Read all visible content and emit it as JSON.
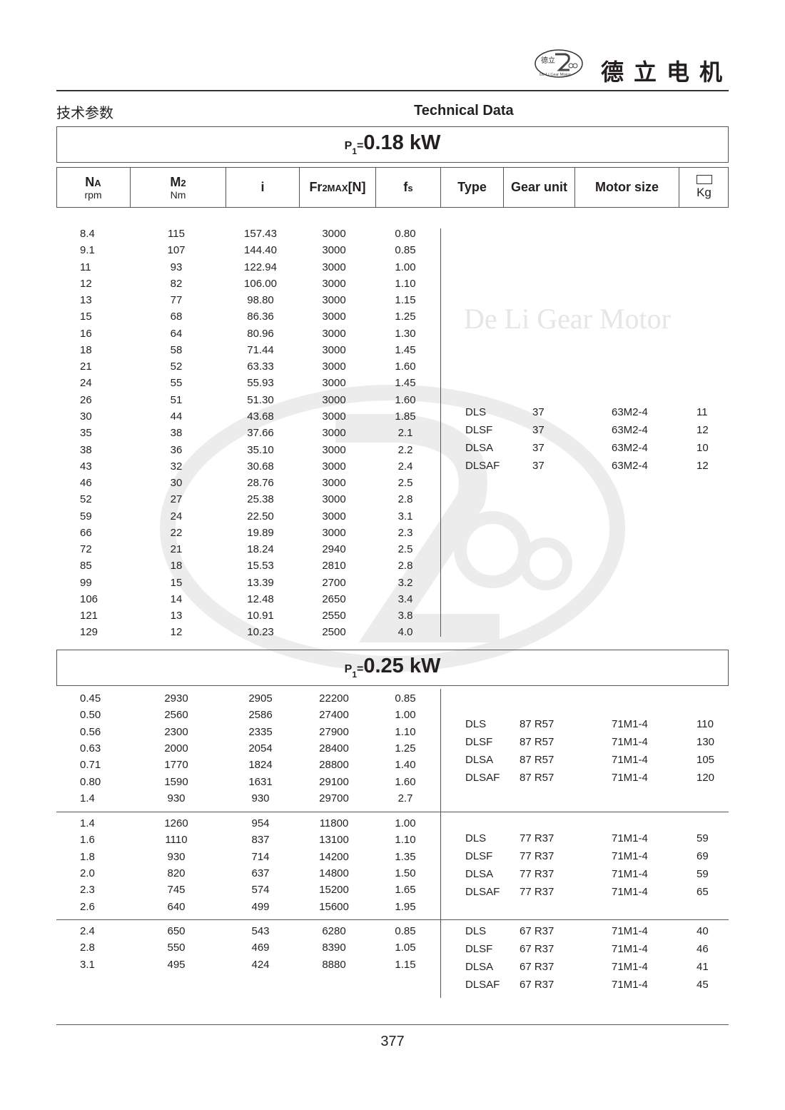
{
  "brand": {
    "logo_text": "德立",
    "logo_caption": "De Li Gear Motor",
    "name_cn": "德立电机"
  },
  "page_heading": {
    "cn": "技术参数",
    "en": "Technical Data"
  },
  "watermark": "De Li Gear Motor",
  "columns": {
    "na": {
      "label": "N",
      "sub": "A",
      "unit": "rpm"
    },
    "m2": {
      "label": "M",
      "sub": "2",
      "unit": "Nm"
    },
    "i": {
      "label": "i"
    },
    "fr": {
      "label": "Fr",
      "sub": "2MAX",
      "suffix": "[N]"
    },
    "fs": {
      "label": "f",
      "sub": "s"
    },
    "type": {
      "label": "Type"
    },
    "gear": {
      "label": "Gear unit"
    },
    "motor": {
      "label": "Motor size"
    },
    "kg": {
      "label": "Kg",
      "icon": "weight-icon"
    }
  },
  "sections": [
    {
      "power_prefix": "P",
      "power_sub": "1",
      "power_eq": "=",
      "power": "0.18 kW",
      "groups": [
        {
          "rows": [
            [
              "8.4",
              "115",
              "157.43",
              "3000",
              "0.80"
            ],
            [
              "9.1",
              "107",
              "144.40",
              "3000",
              "0.85"
            ],
            [
              "11",
              "93",
              "122.94",
              "3000",
              "1.00"
            ],
            [
              "12",
              "82",
              "106.00",
              "3000",
              "1.10"
            ],
            [
              "13",
              "77",
              "98.80",
              "3000",
              "1.15"
            ],
            [
              "15",
              "68",
              "86.36",
              "3000",
              "1.25"
            ],
            [
              "16",
              "64",
              "80.96",
              "3000",
              "1.30"
            ],
            [
              "18",
              "58",
              "71.44",
              "3000",
              "1.45"
            ],
            [
              "21",
              "52",
              "63.33",
              "3000",
              "1.60"
            ],
            [
              "24",
              "55",
              "55.93",
              "3000",
              "1.45"
            ],
            [
              "26",
              "51",
              "51.30",
              "3000",
              "1.60"
            ],
            [
              "30",
              "44",
              "43.68",
              "3000",
              "1.85"
            ],
            [
              "35",
              "38",
              "37.66",
              "3000",
              "2.1"
            ],
            [
              "38",
              "36",
              "35.10",
              "3000",
              "2.2"
            ],
            [
              "43",
              "32",
              "30.68",
              "3000",
              "2.4"
            ],
            [
              "46",
              "30",
              "28.76",
              "3000",
              "2.5"
            ],
            [
              "52",
              "27",
              "25.38",
              "3000",
              "2.8"
            ],
            [
              "59",
              "24",
              "22.50",
              "3000",
              "3.1"
            ],
            [
              "66",
              "22",
              "19.89",
              "3000",
              "2.3"
            ],
            [
              "72",
              "21",
              "18.24",
              "2940",
              "2.5"
            ],
            [
              "85",
              "18",
              "15.53",
              "2810",
              "2.8"
            ],
            [
              "99",
              "15",
              "13.39",
              "2700",
              "3.2"
            ],
            [
              "106",
              "14",
              "12.48",
              "2650",
              "3.4"
            ],
            [
              "121",
              "13",
              "10.91",
              "2550",
              "3.8"
            ],
            [
              "129",
              "12",
              "10.23",
              "2500",
              "4.0"
            ]
          ],
          "units": [
            [
              "DLS",
              "37",
              "63M2-4",
              "11"
            ],
            [
              "DLSF",
              "37",
              "63M2-4",
              "12"
            ],
            [
              "DLSA",
              "37",
              "63M2-4",
              "10"
            ],
            [
              "DLSAF",
              "37",
              "63M2-4",
              "12"
            ]
          ]
        }
      ]
    },
    {
      "power_prefix": "P",
      "power_sub": "1",
      "power_eq": "=",
      "power": "0.25 kW",
      "groups": [
        {
          "rows": [
            [
              "0.45",
              "2930",
              "2905",
              "22200",
              "0.85"
            ],
            [
              "0.50",
              "2560",
              "2586",
              "27400",
              "1.00"
            ],
            [
              "0.56",
              "2300",
              "2335",
              "27900",
              "1.10"
            ],
            [
              "0.63",
              "2000",
              "2054",
              "28400",
              "1.25"
            ],
            [
              "0.71",
              "1770",
              "1824",
              "28800",
              "1.40"
            ],
            [
              "0.80",
              "1590",
              "1631",
              "29100",
              "1.60"
            ],
            [
              "1.4",
              "930",
              "930",
              "29700",
              "2.7"
            ]
          ],
          "units": [
            [
              "DLS",
              "87 R57",
              "71M1-4",
              "110"
            ],
            [
              "DLSF",
              "87 R57",
              "71M1-4",
              "130"
            ],
            [
              "DLSA",
              "87 R57",
              "71M1-4",
              "105"
            ],
            [
              "DLSAF",
              "87 R57",
              "71M1-4",
              "120"
            ]
          ]
        },
        {
          "rows": [
            [
              "1.4",
              "1260",
              "954",
              "11800",
              "1.00"
            ],
            [
              "1.6",
              "1110",
              "837",
              "13100",
              "1.10"
            ],
            [
              "1.8",
              "930",
              "714",
              "14200",
              "1.35"
            ],
            [
              "2.0",
              "820",
              "637",
              "14800",
              "1.50"
            ],
            [
              "2.3",
              "745",
              "574",
              "15200",
              "1.65"
            ],
            [
              "2.6",
              "640",
              "499",
              "15600",
              "1.95"
            ]
          ],
          "units": [
            [
              "DLS",
              "77 R37",
              "71M1-4",
              "59"
            ],
            [
              "DLSF",
              "77 R37",
              "71M1-4",
              "69"
            ],
            [
              "DLSA",
              "77 R37",
              "71M1-4",
              "59"
            ],
            [
              "DLSAF",
              "77 R37",
              "71M1-4",
              "65"
            ]
          ]
        },
        {
          "rows": [
            [
              "2.4",
              "650",
              "543",
              "6280",
              "0.85"
            ],
            [
              "2.8",
              "550",
              "469",
              "8390",
              "1.05"
            ],
            [
              "3.1",
              "495",
              "424",
              "8880",
              "1.15"
            ]
          ],
          "units": [
            [
              "DLS",
              "67 R37",
              "71M1-4",
              "40"
            ],
            [
              "DLSF",
              "67 R37",
              "71M1-4",
              "46"
            ],
            [
              "DLSA",
              "67 R37",
              "71M1-4",
              "41"
            ],
            [
              "DLSAF",
              "67 R37",
              "71M1-4",
              "45"
            ]
          ]
        }
      ]
    }
  ],
  "page_number": "377"
}
